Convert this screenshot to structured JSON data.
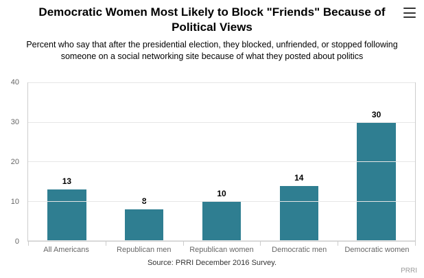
{
  "icons": {
    "menu": "hamburger-icon"
  },
  "chart_data": {
    "type": "bar",
    "title": "Democratic Women Most Likely to Block \"Friends\" Because of Political Views",
    "subtitle": "Percent who say that after the presidential election, they blocked, unfriended, or stopped following someone on a social networking site because of what they posted about politics",
    "source": "Source: PRRI December 2016 Survey.",
    "credit": "PRRI",
    "categories": [
      "All Americans",
      "Republican men",
      "Republican women",
      "Democratic men",
      "Democratic women"
    ],
    "values": [
      13,
      8,
      10,
      14,
      30
    ],
    "xlabel": "",
    "ylabel": "",
    "ylim": [
      0,
      40
    ],
    "yticks": [
      0,
      10,
      20,
      30,
      40
    ],
    "grid": true,
    "legend": false,
    "bar_color": "#2f7e91",
    "gridline_color": "#e6e6e6",
    "axis_label_color": "#666666"
  }
}
